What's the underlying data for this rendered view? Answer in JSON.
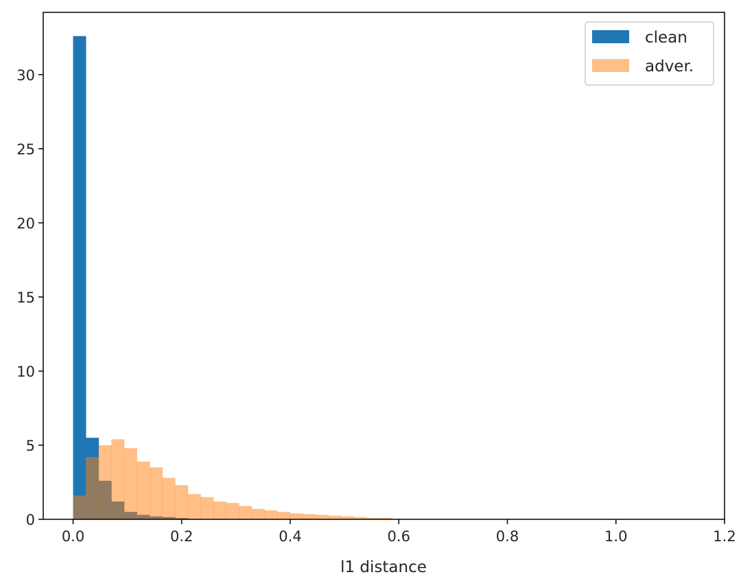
{
  "chart_data": {
    "type": "bar",
    "subtype": "histogram",
    "title": "",
    "xlabel": "l1 distance",
    "ylabel": "",
    "xlim": [
      -0.055,
      1.2
    ],
    "ylim": [
      0,
      34.2
    ],
    "xticks": [
      0.0,
      0.2,
      0.4,
      0.6,
      0.8,
      1.0,
      1.2
    ],
    "xtick_labels": [
      "0.0",
      "0.2",
      "0.4",
      "0.6",
      "0.8",
      "1.0",
      "1.2"
    ],
    "yticks": [
      0,
      5,
      10,
      15,
      20,
      25,
      30
    ],
    "ytick_labels": [
      "0",
      "5",
      "10",
      "15",
      "20",
      "25",
      "30"
    ],
    "grid": false,
    "legend_position": "top-right",
    "series": [
      {
        "name": "clean",
        "color": "#1f77b4",
        "opacity": 1.0,
        "bin_start": 0.0,
        "bin_width": 0.0235,
        "values": [
          32.6,
          5.5,
          2.6,
          1.2,
          0.5,
          0.3,
          0.2,
          0.15,
          0.08
        ]
      },
      {
        "name": "adver.",
        "color": "#ff7f0e",
        "opacity": 0.5,
        "bin_start": 0.0,
        "bin_width": 0.0235,
        "values": [
          1.6,
          4.2,
          5.0,
          5.4,
          4.8,
          3.9,
          3.5,
          2.8,
          2.3,
          1.7,
          1.5,
          1.2,
          1.1,
          0.9,
          0.7,
          0.6,
          0.5,
          0.4,
          0.35,
          0.3,
          0.25,
          0.2,
          0.15,
          0.1,
          0.1
        ]
      }
    ]
  }
}
